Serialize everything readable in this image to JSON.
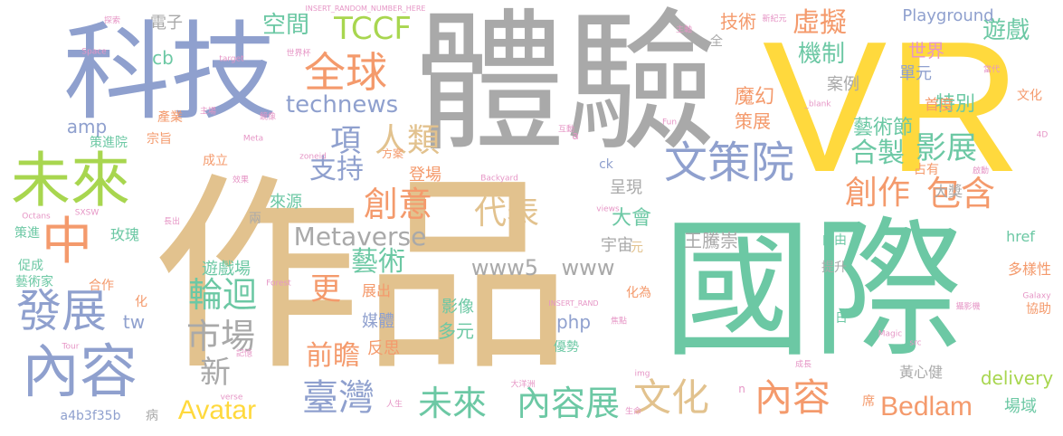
{
  "palette": {
    "gray": "#a9a9a9",
    "blue": "#8fa0ce",
    "green": "#6cc8a4",
    "yellow": "#ffd93d",
    "tan": "#e2c28e",
    "orange": "#f49a6c",
    "lime": "#a8d64f",
    "pink": "#e696c6",
    "light_gray": "#bdbdbd"
  },
  "words": [
    {
      "id": "keji",
      "text": "科技",
      "color": "blue"
    },
    {
      "id": "tiyan",
      "text": "體驗",
      "color": "gray"
    },
    {
      "id": "vr",
      "text": "VR",
      "color": "yellow"
    },
    {
      "id": "zuopin",
      "text": "作品",
      "color": "tan"
    },
    {
      "id": "guoji",
      "text": "國際",
      "color": "green"
    },
    {
      "id": "weilai-big",
      "text": "未來",
      "color": "lime"
    },
    {
      "id": "zhong",
      "text": "中",
      "color": "orange"
    },
    {
      "id": "fazhan",
      "text": "發展",
      "color": "blue"
    },
    {
      "id": "neirong-left",
      "text": "內容",
      "color": "blue"
    },
    {
      "id": "quanqiu",
      "text": "全球",
      "color": "orange"
    },
    {
      "id": "tccf",
      "text": "TCCF",
      "color": "lime"
    },
    {
      "id": "wencewuan",
      "text": "文策院",
      "color": "blue"
    },
    {
      "id": "renlei",
      "text": "人類",
      "color": "tan"
    },
    {
      "id": "technews",
      "text": "technews",
      "color": "blue"
    },
    {
      "id": "xiang",
      "text": "項",
      "color": "blue"
    },
    {
      "id": "zhichi",
      "text": "支持",
      "color": "blue"
    },
    {
      "id": "chuangyi",
      "text": "創意",
      "color": "orange"
    },
    {
      "id": "daibiao",
      "text": "代表",
      "color": "tan"
    },
    {
      "id": "metaverse",
      "text": "Metaverse",
      "color": "gray"
    },
    {
      "id": "yishu",
      "text": "藝術",
      "color": "green"
    },
    {
      "id": "www5",
      "text": "www5",
      "color": "gray"
    },
    {
      "id": "www",
      "text": "www",
      "color": "gray"
    },
    {
      "id": "lunhui",
      "text": "輪迴",
      "color": "green"
    },
    {
      "id": "shichang",
      "text": "市場",
      "color": "gray"
    },
    {
      "id": "geng",
      "text": "更",
      "color": "orange"
    },
    {
      "id": "qianzhan",
      "text": "前瞻",
      "color": "orange"
    },
    {
      "id": "xin",
      "text": "新",
      "color": "gray"
    },
    {
      "id": "avatar",
      "text": "Avatar",
      "color": "yellow"
    },
    {
      "id": "taiwan",
      "text": "臺灣",
      "color": "blue"
    },
    {
      "id": "weilai-small",
      "text": "未來",
      "color": "green"
    },
    {
      "id": "neirongzhan",
      "text": "內容展",
      "color": "green"
    },
    {
      "id": "wenhua",
      "text": "文化",
      "color": "tan"
    },
    {
      "id": "neirong-right",
      "text": "內容",
      "color": "orange"
    },
    {
      "id": "bedlam",
      "text": "Bedlam",
      "color": "orange"
    },
    {
      "id": "baohan",
      "text": "包含",
      "color": "orange"
    },
    {
      "id": "chuangzuo",
      "text": "創作",
      "color": "orange"
    },
    {
      "id": "yingzhan",
      "text": "影展",
      "color": "green"
    },
    {
      "id": "hezhi",
      "text": "合製",
      "color": "green"
    },
    {
      "id": "jizhi",
      "text": "機制",
      "color": "green"
    },
    {
      "id": "xuni",
      "text": "虛擬",
      "color": "orange"
    },
    {
      "id": "kongjian",
      "text": "空間",
      "color": "green"
    },
    {
      "id": "playground",
      "text": "Playground",
      "color": "blue"
    },
    {
      "id": "youxi",
      "text": "遊戲",
      "color": "green"
    },
    {
      "id": "jishu",
      "text": "技術",
      "color": "orange"
    },
    {
      "id": "shijie",
      "text": "世界",
      "color": "pink"
    },
    {
      "id": "tebie",
      "text": "特別",
      "color": "green"
    },
    {
      "id": "anli",
      "text": "案例",
      "color": "gray"
    },
    {
      "id": "danyuan",
      "text": "單元",
      "color": "blue"
    },
    {
      "id": "mohuan",
      "text": "魔幻",
      "color": "orange"
    },
    {
      "id": "cezhan",
      "text": "策展",
      "color": "orange"
    },
    {
      "id": "yishujie",
      "text": "藝術節",
      "color": "green"
    },
    {
      "id": "shoudu",
      "text": "首度",
      "color": "orange"
    },
    {
      "id": "dajiang",
      "text": "大獎",
      "color": "gray"
    },
    {
      "id": "dahui",
      "text": "大會",
      "color": "green"
    },
    {
      "id": "chengxian",
      "text": "呈現",
      "color": "gray"
    },
    {
      "id": "yuzhou",
      "text": "宇宙",
      "color": "gray"
    },
    {
      "id": "wangtengchong",
      "text": "王騰崇",
      "color": "gray"
    },
    {
      "id": "ziyou",
      "text": "自由",
      "color": "green"
    },
    {
      "id": "href",
      "text": "href",
      "color": "green"
    },
    {
      "id": "tisheng",
      "text": "提升",
      "color": "gray"
    },
    {
      "id": "duoyangxing",
      "text": "多樣性",
      "color": "orange"
    },
    {
      "id": "xiezhu",
      "text": "協助",
      "color": "orange"
    },
    {
      "id": "huangxinjian",
      "text": "黃心健",
      "color": "gray"
    },
    {
      "id": "delivery",
      "text": "delivery",
      "color": "lime"
    },
    {
      "id": "changyu",
      "text": "場域",
      "color": "green"
    },
    {
      "id": "dianzi",
      "text": "電子",
      "color": "gray"
    },
    {
      "id": "cb",
      "text": "cb",
      "color": "green"
    },
    {
      "id": "amp",
      "text": "amp",
      "color": "blue"
    },
    {
      "id": "chanye",
      "text": "產業",
      "color": "orange"
    },
    {
      "id": "zongzhi",
      "text": "宗旨",
      "color": "orange"
    },
    {
      "id": "cejinyuan",
      "text": "策進院",
      "color": "green"
    },
    {
      "id": "chengli",
      "text": "成立",
      "color": "orange"
    },
    {
      "id": "laiyuan",
      "text": "來源",
      "color": "green"
    },
    {
      "id": "dengchang",
      "text": "登場",
      "color": "orange"
    },
    {
      "id": "meiti",
      "text": "媒體",
      "color": "blue"
    },
    {
      "id": "fansi",
      "text": "反思",
      "color": "orange"
    },
    {
      "id": "duoyuan",
      "text": "多元",
      "color": "green"
    },
    {
      "id": "yingxiang",
      "text": "影像",
      "color": "green"
    },
    {
      "id": "php",
      "text": "php",
      "color": "blue"
    },
    {
      "id": "youxichang",
      "text": "遊戲場",
      "color": "green"
    },
    {
      "id": "zhanchu",
      "text": "展出",
      "color": "orange"
    },
    {
      "id": "meigui",
      "text": "玫瑰",
      "color": "green"
    },
    {
      "id": "cejin",
      "text": "策進",
      "color": "green"
    },
    {
      "id": "cucheng",
      "text": "促成",
      "color": "green"
    },
    {
      "id": "yishujia",
      "text": "藝術家",
      "color": "green"
    },
    {
      "id": "hezuo",
      "text": "合作",
      "color": "orange"
    },
    {
      "id": "tw",
      "text": "tw",
      "color": "blue"
    },
    {
      "id": "hua",
      "text": "化",
      "color": "orange"
    },
    {
      "id": "a4b3f35b",
      "text": "a4b3f35b",
      "color": "blue"
    },
    {
      "id": "bing",
      "text": "病",
      "color": "gray"
    },
    {
      "id": "liang",
      "text": "兩",
      "color": "gray"
    },
    {
      "id": "ck",
      "text": "ck",
      "color": "blue"
    },
    {
      "id": "quan",
      "text": "全",
      "color": "gray"
    },
    {
      "id": "yuan",
      "text": "元",
      "color": "tan"
    },
    {
      "id": "ri",
      "text": "日",
      "color": "green"
    },
    {
      "id": "zhanyou",
      "text": "占有",
      "color": "orange"
    },
    {
      "id": "xi",
      "text": "席",
      "color": "orange"
    },
    {
      "id": "huawei",
      "text": "化為",
      "color": "orange"
    },
    {
      "id": "youshi",
      "text": "優勢",
      "color": "green"
    },
    {
      "id": "wenhua-small",
      "text": "文化",
      "color": "orange"
    },
    {
      "id": "fangan",
      "text": "方案",
      "color": "orange"
    },
    {
      "id": "meta",
      "text": "Meta",
      "color": "pink"
    },
    {
      "id": "space",
      "text": "Space",
      "color": "pink"
    },
    {
      "id": "target",
      "text": "target",
      "color": "pink"
    },
    {
      "id": "tansuo",
      "text": "探索",
      "color": "pink"
    },
    {
      "id": "insert-num",
      "text": "INSERT_RANDOM_NUMBER_HERE",
      "color": "pink"
    },
    {
      "id": "insert-rand",
      "text": "INSERT_RAND",
      "color": "pink"
    },
    {
      "id": "fun",
      "text": "Fun",
      "color": "pink"
    },
    {
      "id": "blank",
      "text": "_blank",
      "color": "pink"
    },
    {
      "id": "backyard",
      "text": "Backyard",
      "color": "pink"
    },
    {
      "id": "views",
      "text": "views",
      "color": "pink"
    },
    {
      "id": "sxsw",
      "text": "SXSW",
      "color": "pink"
    },
    {
      "id": "octans",
      "text": "Octans",
      "color": "pink"
    },
    {
      "id": "forest",
      "text": "Forest",
      "color": "pink"
    },
    {
      "id": "magic",
      "text": "Magic",
      "color": "pink"
    },
    {
      "id": "galaxy",
      "text": "Galaxy",
      "color": "pink"
    },
    {
      "id": "src",
      "text": "src",
      "color": "pink"
    },
    {
      "id": "img",
      "text": "img",
      "color": "pink"
    },
    {
      "id": "tour",
      "text": "Tour",
      "color": "pink"
    },
    {
      "id": "verse",
      "text": "verse",
      "color": "pink"
    },
    {
      "id": "zoneid",
      "text": "zoneid",
      "color": "pink"
    },
    {
      "id": "a-letter",
      "text": "a",
      "color": "pink"
    },
    {
      "id": "n-letter",
      "text": "n",
      "color": "pink"
    },
    {
      "id": "4d",
      "text": "4D",
      "color": "pink"
    },
    {
      "id": "zhuti",
      "text": "主軸",
      "color": "pink"
    },
    {
      "id": "xinjiyuan",
      "text": "新紀元",
      "color": "pink"
    },
    {
      "id": "shijiebei",
      "text": "世界杯",
      "color": "pink"
    },
    {
      "id": "xiandai",
      "text": "當代",
      "color": "pink"
    },
    {
      "id": "huodong",
      "text": "互動",
      "color": "pink"
    },
    {
      "id": "jingxiang",
      "text": "鏡像",
      "color": "pink"
    },
    {
      "id": "xiaoguo",
      "text": "效果",
      "color": "pink"
    },
    {
      "id": "zhuchang",
      "text": "主場",
      "color": "pink"
    },
    {
      "id": "rensheng",
      "text": "人生",
      "color": "pink"
    },
    {
      "id": "dayangzhou",
      "text": "大洋洲",
      "color": "pink"
    },
    {
      "id": "jiaodian",
      "text": "焦點",
      "color": "pink"
    },
    {
      "id": "qidong",
      "text": "啟動",
      "color": "pink"
    },
    {
      "id": "sheyingji",
      "text": "攝影機",
      "color": "pink"
    },
    {
      "id": "changchu",
      "text": "長出",
      "color": "pink"
    },
    {
      "id": "jiyi",
      "text": "記憶",
      "color": "pink"
    },
    {
      "id": "shengming",
      "text": "生命",
      "color": "pink"
    },
    {
      "id": "chengchang",
      "text": "成長",
      "color": "pink"
    }
  ]
}
